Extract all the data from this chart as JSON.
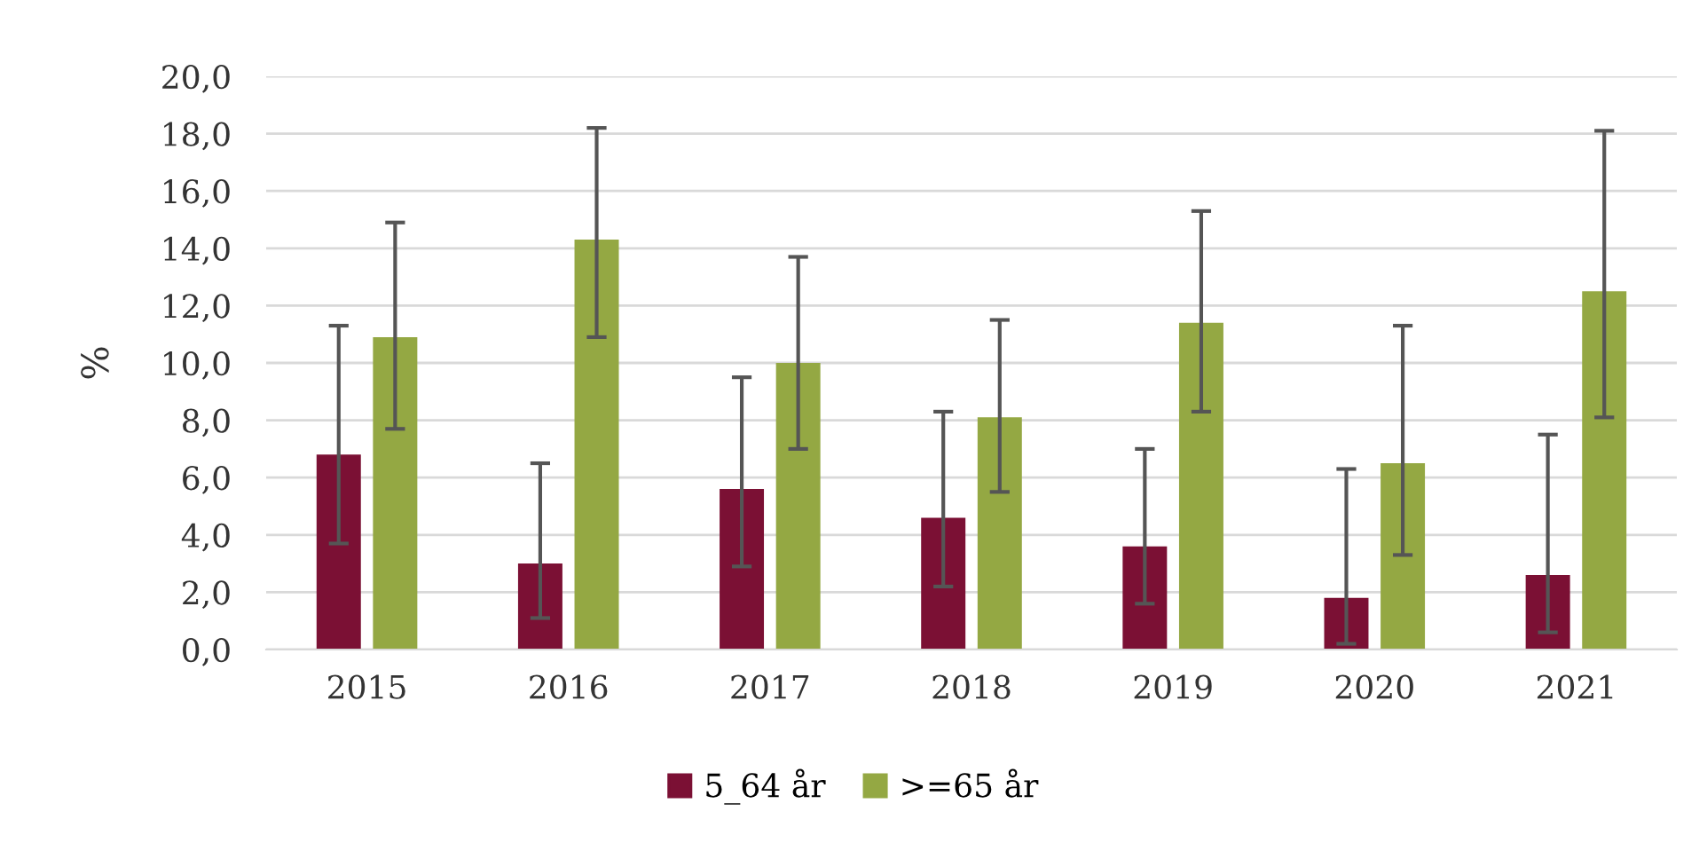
{
  "chart_data": {
    "type": "bar",
    "ylabel": "%",
    "categories": [
      "2015",
      "2016",
      "2017",
      "2018",
      "2019",
      "2020",
      "2021"
    ],
    "series": [
      {
        "name": "5_64 år",
        "color": "#7b1034",
        "values": [
          6.8,
          3.0,
          5.6,
          4.6,
          3.6,
          1.8,
          2.6
        ],
        "errors": [
          [
            3.7,
            11.3
          ],
          [
            1.1,
            6.5
          ],
          [
            2.9,
            9.5
          ],
          [
            2.2,
            8.3
          ],
          [
            1.6,
            7.0
          ],
          [
            0.2,
            6.3
          ],
          [
            0.6,
            7.5
          ]
        ]
      },
      {
        "name": ">=65 år",
        "color": "#94a843",
        "values": [
          10.9,
          14.3,
          10.0,
          8.1,
          11.4,
          6.5,
          12.5
        ],
        "errors": [
          [
            7.7,
            14.9
          ],
          [
            10.9,
            18.2
          ],
          [
            7.0,
            13.7
          ],
          [
            5.5,
            11.5
          ],
          [
            8.3,
            15.3
          ],
          [
            3.3,
            11.3
          ],
          [
            8.1,
            18.1
          ]
        ]
      }
    ],
    "ylim": [
      0,
      20
    ],
    "yticks": [
      {
        "value": 0,
        "label": "0,0"
      },
      {
        "value": 2,
        "label": "2,0"
      },
      {
        "value": 4,
        "label": "4,0"
      },
      {
        "value": 6,
        "label": "6,0"
      },
      {
        "value": 8,
        "label": "8,0"
      },
      {
        "value": 10,
        "label": "10,0"
      },
      {
        "value": 12,
        "label": "12,0"
      },
      {
        "value": 14,
        "label": "14,0"
      },
      {
        "value": 16,
        "label": "16,0"
      },
      {
        "value": 18,
        "label": "18,0"
      },
      {
        "value": 20,
        "label": "20,0"
      }
    ],
    "grid": "y",
    "legend": "bottom"
  }
}
